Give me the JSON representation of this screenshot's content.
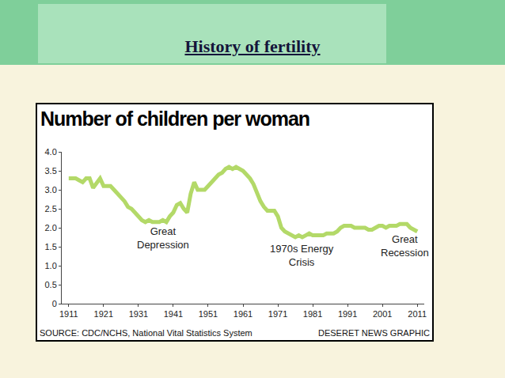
{
  "slide": {
    "title": "History of fertility"
  },
  "chart_data": {
    "type": "line",
    "title": "Number of children per woman",
    "source": "SOURCE: CDC/NCHS, National Vital Statistics System",
    "credit": "DESERET NEWS GRAPHIC",
    "color": "#b3d968",
    "x": [
      1911,
      1912,
      1913,
      1914,
      1915,
      1916,
      1917,
      1918,
      1919,
      1920,
      1921,
      1922,
      1923,
      1924,
      1925,
      1926,
      1927,
      1928,
      1929,
      1930,
      1931,
      1932,
      1933,
      1934,
      1935,
      1936,
      1937,
      1938,
      1939,
      1940,
      1941,
      1942,
      1943,
      1944,
      1945,
      1946,
      1947,
      1948,
      1949,
      1950,
      1951,
      1952,
      1953,
      1954,
      1955,
      1956,
      1957,
      1958,
      1959,
      1960,
      1961,
      1962,
      1963,
      1964,
      1965,
      1966,
      1967,
      1968,
      1969,
      1970,
      1971,
      1972,
      1973,
      1974,
      1975,
      1976,
      1977,
      1978,
      1979,
      1980,
      1981,
      1982,
      1983,
      1984,
      1985,
      1986,
      1987,
      1988,
      1989,
      1990,
      1991,
      1992,
      1993,
      1994,
      1995,
      1996,
      1997,
      1998,
      1999,
      2000,
      2001,
      2002,
      2003,
      2004,
      2005,
      2006,
      2007,
      2008,
      2009,
      2010,
      2011
    ],
    "values": [
      3.3,
      3.3,
      3.3,
      3.25,
      3.2,
      3.3,
      3.3,
      3.05,
      3.2,
      3.3,
      3.1,
      3.1,
      3.1,
      3.0,
      2.9,
      2.8,
      2.7,
      2.55,
      2.5,
      2.4,
      2.3,
      2.2,
      2.15,
      2.2,
      2.15,
      2.15,
      2.15,
      2.2,
      2.15,
      2.3,
      2.4,
      2.6,
      2.65,
      2.5,
      2.4,
      2.9,
      3.2,
      3.0,
      3.0,
      3.0,
      3.1,
      3.2,
      3.3,
      3.4,
      3.45,
      3.55,
      3.6,
      3.55,
      3.6,
      3.55,
      3.5,
      3.4,
      3.3,
      3.15,
      2.9,
      2.7,
      2.55,
      2.45,
      2.45,
      2.45,
      2.3,
      2.0,
      1.9,
      1.85,
      1.8,
      1.75,
      1.8,
      1.75,
      1.8,
      1.85,
      1.8,
      1.8,
      1.8,
      1.8,
      1.85,
      1.85,
      1.85,
      1.9,
      2.0,
      2.05,
      2.05,
      2.05,
      2.0,
      2.0,
      2.0,
      2.0,
      1.95,
      1.95,
      2.0,
      2.05,
      2.05,
      2.0,
      2.05,
      2.05,
      2.05,
      2.1,
      2.1,
      2.1,
      2.0,
      1.95,
      1.9
    ],
    "xlim": [
      1909,
      2013
    ],
    "xticks": [
      1911,
      1921,
      1931,
      1941,
      1951,
      1961,
      1971,
      1981,
      1991,
      2001,
      2011
    ],
    "ylim": [
      0,
      4
    ],
    "yticks": [
      0,
      0.5,
      {
        "value": 1,
        "label": "1.0"
      },
      1.5,
      {
        "value": 2,
        "label": "2.0"
      },
      2.5,
      {
        "value": 3,
        "label": "3.0"
      },
      3.5,
      {
        "value": 4,
        "label": "4.0"
      }
    ],
    "grid": false,
    "annotations": [
      {
        "text": "Great\nDepression",
        "x": 1938,
        "y": 1.72
      },
      {
        "text": "1970s Energy\nCrisis",
        "x": 1978,
        "y": 1.27
      },
      {
        "text": "Great\nRecession",
        "x": 2007.5,
        "y": 1.53
      }
    ]
  }
}
